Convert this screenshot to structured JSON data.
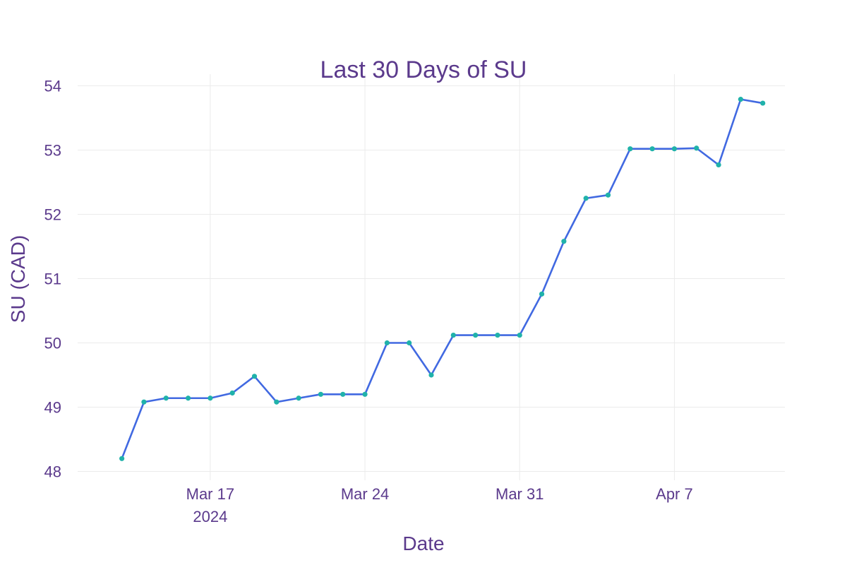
{
  "chart_data": {
    "type": "line",
    "title": "Last 30 Days of SU",
    "xlabel": "Date",
    "ylabel": "SU (CAD)",
    "ylim": [
      48,
      54
    ],
    "xlim": [
      "2024-03-11",
      "2024-04-12"
    ],
    "yticks": [
      "48",
      "49",
      "50",
      "51",
      "52",
      "53",
      "54"
    ],
    "xticks": [
      {
        "date": "2024-03-17",
        "label": "Mar 17",
        "sublabel": "2024"
      },
      {
        "date": "2024-03-24",
        "label": "Mar 24",
        "sublabel": ""
      },
      {
        "date": "2024-03-31",
        "label": "Mar 31",
        "sublabel": ""
      },
      {
        "date": "2024-04-07",
        "label": "Apr 7",
        "sublabel": ""
      }
    ],
    "grid": true,
    "colors": {
      "line": "#4169e1",
      "marker": "#20b2aa",
      "text": "#5b3a8c",
      "grid": "#ebebeb"
    },
    "x": [
      "2024-03-13",
      "2024-03-14",
      "2024-03-15",
      "2024-03-16",
      "2024-03-17",
      "2024-03-18",
      "2024-03-19",
      "2024-03-20",
      "2024-03-21",
      "2024-03-22",
      "2024-03-23",
      "2024-03-24",
      "2024-03-25",
      "2024-03-26",
      "2024-03-27",
      "2024-03-28",
      "2024-03-29",
      "2024-03-30",
      "2024-03-31",
      "2024-04-01",
      "2024-04-02",
      "2024-04-03",
      "2024-04-04",
      "2024-04-05",
      "2024-04-06",
      "2024-04-07",
      "2024-04-08",
      "2024-04-09",
      "2024-04-10",
      "2024-04-11"
    ],
    "series": [
      {
        "values": [
          48.2,
          49.08,
          49.14,
          49.14,
          49.14,
          49.22,
          49.48,
          49.08,
          49.14,
          49.2,
          49.2,
          49.2,
          50.0,
          50.0,
          49.5,
          50.12,
          50.12,
          50.12,
          50.12,
          50.76,
          51.58,
          52.25,
          52.3,
          53.02,
          53.02,
          53.02,
          53.03,
          52.77,
          53.79,
          53.73
        ]
      }
    ]
  }
}
